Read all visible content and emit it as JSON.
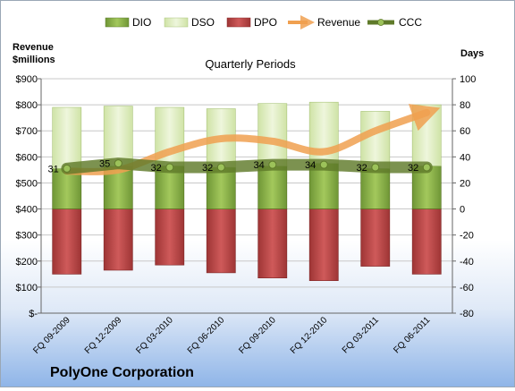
{
  "chart_data": {
    "type": "bar",
    "title": "Quarterly Periods",
    "company": "PolyOne Corporation",
    "left_axis_label": [
      "Revenue",
      "$millions"
    ],
    "right_axis_label": "Days",
    "left_ticks": [
      "$-",
      "$100",
      "$200",
      "$300",
      "$400",
      "$500",
      "$600",
      "$700",
      "$800",
      "$900"
    ],
    "left_ylim": [
      0,
      900
    ],
    "right_ticks": [
      "-80",
      "-60",
      "-40",
      "-20",
      "0",
      "20",
      "40",
      "60",
      "80",
      "100"
    ],
    "right_ylim": [
      -80,
      100
    ],
    "categories": [
      "FQ 09-2009",
      "FQ 12-2009",
      "FQ 03-2010",
      "FQ 06-2010",
      "FQ 09-2010",
      "FQ 12-2010",
      "FQ 03-2011",
      "FQ 06-2011"
    ],
    "series": [
      {
        "name": "DIO",
        "axis": "days",
        "kind": "stacked-bar",
        "values": [
          31,
          33,
          33,
          32,
          33,
          35,
          31,
          33
        ],
        "color": "#8db14a"
      },
      {
        "name": "DSO",
        "axis": "days",
        "kind": "stacked-bar",
        "values": [
          47,
          46,
          45,
          45,
          48,
          47,
          44,
          47
        ],
        "color": "#d9eab6"
      },
      {
        "name": "DPO",
        "axis": "days",
        "kind": "stacked-bar-negative",
        "values": [
          -50,
          -47,
          -43,
          -49,
          -53,
          -55,
          -44,
          -50
        ],
        "color": "#b84545"
      },
      {
        "name": "Revenue",
        "axis": "revenue",
        "kind": "line",
        "values": [
          545,
          550,
          620,
          670,
          660,
          620,
          700,
          770
        ],
        "color": "#f0a050"
      },
      {
        "name": "CCC",
        "axis": "days",
        "kind": "line",
        "values": [
          31,
          35,
          32,
          32,
          34,
          34,
          32,
          32
        ],
        "color": "#5f7a2a"
      }
    ],
    "legend": [
      "DIO",
      "DSO",
      "DPO",
      "Revenue",
      "CCC"
    ],
    "legend_position": "top",
    "grid": true
  }
}
